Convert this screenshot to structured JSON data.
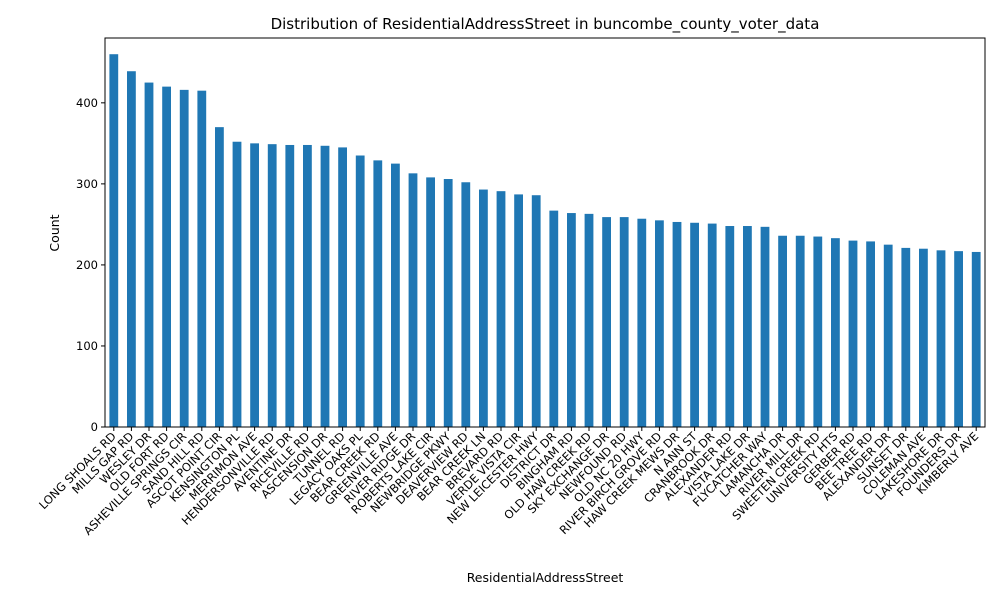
{
  "chart_data": {
    "type": "bar",
    "title": "Distribution of ResidentialAddressStreet in buncombe_county_voter_data",
    "xlabel": "ResidentialAddressStreet",
    "ylabel": "Count",
    "ylim": [
      0,
      480
    ],
    "yticks": [
      0,
      100,
      200,
      300,
      400
    ],
    "bar_color": "#1f77b4",
    "grid": false,
    "legend": "none",
    "categories": [
      "LONG SHOALS RD",
      "MILLS GAP RD",
      "WESLEY DR",
      "OLD FORT RD",
      "ASHEVILLE SPRINGS CIR",
      "SAND HILL RD",
      "ASCOT POINT CIR",
      "KENSINGTON PL",
      "MERRIMON AVE",
      "HENDERSONVILLE RD",
      "AVENTINE DR",
      "RICEVILLE RD",
      "ASCENSION DR",
      "TUNNEL RD",
      "LEGACY OAKS PL",
      "BEAR CREEK RD",
      "GREENVILLE AVE",
      "RIVER RIDGE DR",
      "ROBERTS LAKE CIR",
      "NEWBRIDGE PKWY",
      "DEAVERVIEW RD",
      "BEAR CREEK LN",
      "BREVARD RD",
      "VERDE VISTA CIR",
      "NEW LEICESTER HWY",
      "DISTRICT DR",
      "BINGHAM RD",
      "OLD HAW CREEK RD",
      "SKY EXCHANGE DR",
      "NEWFOUND RD",
      "OLD NC 20 HWY",
      "RIVER BIRCH GROVE RD",
      "HAW CREEK MEWS DR",
      "N ANN ST",
      "CRANBROOK DR",
      "ALEXANDER RD",
      "VISTA LAKE DR",
      "FLYCATCHER WAY",
      "LAMANCHA DR",
      "RIVER MILL DR",
      "SWEETEN CREEK RD",
      "UNIVERSITY HTS",
      "GERBER RD",
      "BEE TREE RD",
      "ALEXANDER DR",
      "SUNSET DR",
      "COLEMAN AVE",
      "LAKESHORE DR",
      "FOUNDERS DR",
      "KIMBERLY AVE"
    ],
    "values": [
      460,
      439,
      425,
      420,
      416,
      415,
      370,
      352,
      350,
      349,
      348,
      348,
      347,
      345,
      335,
      329,
      325,
      313,
      308,
      306,
      302,
      293,
      291,
      287,
      286,
      267,
      264,
      263,
      259,
      259,
      257,
      255,
      253,
      252,
      251,
      248,
      248,
      247,
      236,
      236,
      235,
      233,
      230,
      229,
      225,
      221,
      220,
      218,
      217,
      216
    ]
  }
}
